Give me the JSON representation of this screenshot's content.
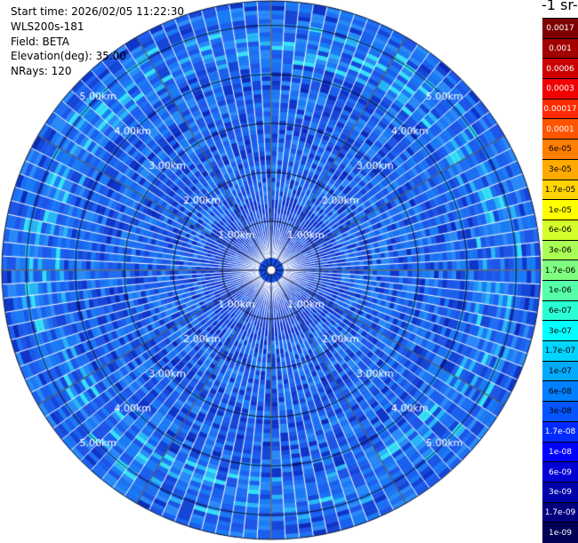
{
  "info": {
    "start_time": "Start time: 2026/02/05 11:22:30",
    "instrument": "WLS200s-181",
    "field": "Field: BETA",
    "elevation": "Elevation(deg): 35.00",
    "nrays": "NRays: 120"
  },
  "colorbar": {
    "title": "-1 sr-",
    "labels": [
      "0.0017",
      "0.001",
      "0.0006",
      "0.0003",
      "0.00017",
      "0.0001",
      "6e-05",
      "3e-05",
      "1.7e-05",
      "1e-05",
      "6e-06",
      "3e-06",
      "1.7e-06",
      "1e-06",
      "6e-07",
      "3e-07",
      "1.7e-07",
      "1e-07",
      "6e-08",
      "3e-08",
      "1.7e-08",
      "1e-08",
      "6e-09",
      "3e-09",
      "1.7e-09",
      "1e-09"
    ],
    "colors": [
      "#7e0000",
      "#a30000",
      "#cc0000",
      "#f20000",
      "#ff2a00",
      "#ff5500",
      "#ff7f00",
      "#ffaa00",
      "#ffd400",
      "#ffff00",
      "#d4ff2a",
      "#aaff55",
      "#7fff7f",
      "#55ffaa",
      "#2affd4",
      "#00ffff",
      "#00d4ff",
      "#00aaff",
      "#007fff",
      "#0055ff",
      "#002aff",
      "#0000ff",
      "#0000d4",
      "#0000aa",
      "#00007f",
      "#000055"
    ]
  },
  "chart_data": {
    "type": "heatmap",
    "projection": "polar-ppi",
    "nrays": 120,
    "max_range_km": 5.5,
    "range_rings_km": [
      1,
      2,
      3,
      4,
      5
    ],
    "ring_labels": [
      "1.00km",
      "2.00km",
      "3.00km",
      "4.00km",
      "5.00km"
    ],
    "value_range": [
      1e-09,
      0.0017
    ],
    "dominant_value": 3e-08
  }
}
